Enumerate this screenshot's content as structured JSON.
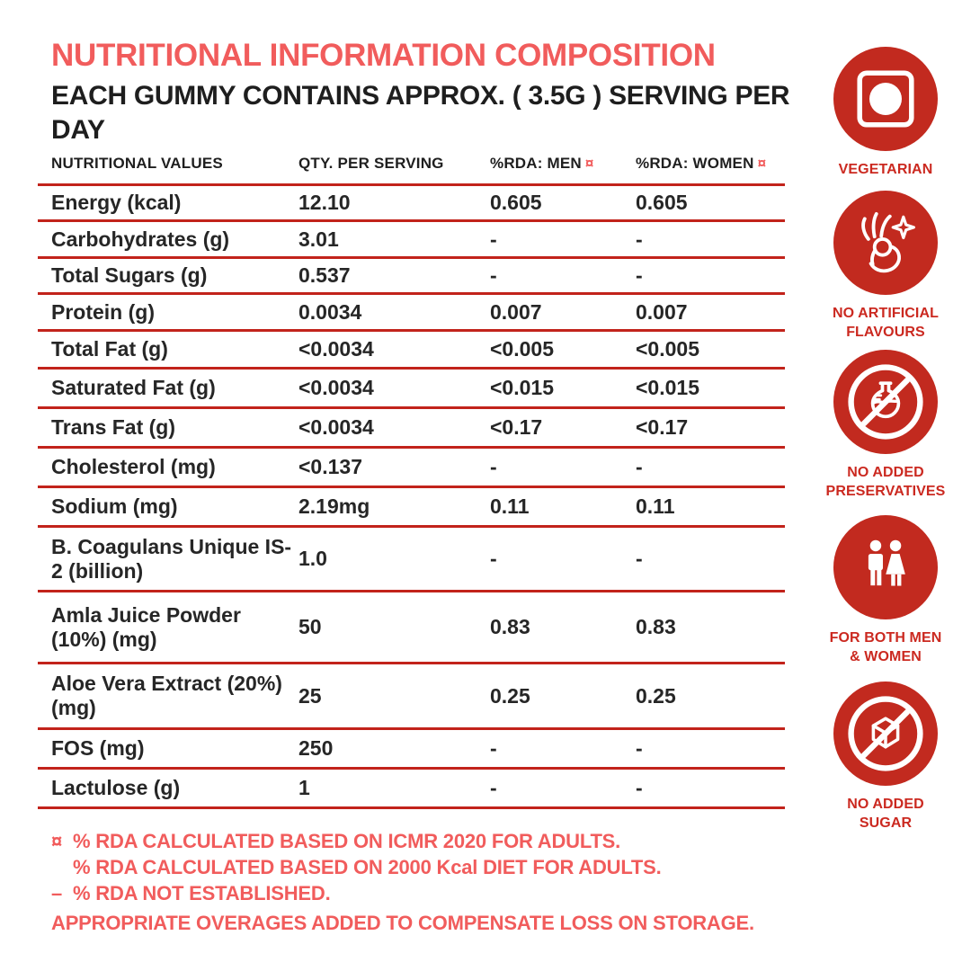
{
  "colors": {
    "coral": "#F15C5C",
    "rule_red": "#C2231B",
    "badge_red": "#C22A1F",
    "badge_label_red": "#CB2920",
    "text_dark": "#262626"
  },
  "header": {
    "title": "NUTRITIONAL INFORMATION COMPOSITION",
    "subtitle": "EACH GUMMY CONTAINS APPROX. ( 3.5G ) SERVING PER DAY"
  },
  "table": {
    "marker": "¤",
    "headers": [
      "NUTRITIONAL VALUES",
      "QTY. PER SERVING",
      "%RDA: MEN",
      "%RDA: WOMEN"
    ],
    "rows": [
      {
        "name": "Energy (kcal)",
        "qty": "12.10",
        "men": "0.605",
        "women": "0.605"
      },
      {
        "name": "Carbohydrates (g)",
        "qty": "3.01",
        "men": "-",
        "women": "-"
      },
      {
        "name": "Total Sugars (g)",
        "qty": "0.537",
        "men": "-",
        "women": "-"
      },
      {
        "name": "Protein (g)",
        "qty": "0.0034",
        "men": "0.007",
        "women": "0.007"
      },
      {
        "name": "Total Fat (g)",
        "qty": "<0.0034",
        "men": "<0.005",
        "women": "<0.005"
      },
      {
        "name": "Saturated Fat (g)",
        "qty": "<0.0034",
        "men": "<0.015",
        "women": "<0.015"
      },
      {
        "name": "Trans Fat (g)",
        "qty": "<0.0034",
        "men": "<0.17",
        "women": "<0.17"
      },
      {
        "name": "Cholesterol (mg)",
        "qty": "<0.137",
        "men": "-",
        "women": "-"
      },
      {
        "name": "Sodium (mg)",
        "qty": "2.19mg",
        "men": "0.11",
        "women": "0.11"
      },
      {
        "name": "B. Coagulans Unique IS-2 (billion)",
        "qty": "1.0",
        "men": "-",
        "women": "-"
      },
      {
        "name": "Amla Juice Powder (10%) (mg)",
        "qty": "50",
        "men": "0.83",
        "women": "0.83"
      },
      {
        "name": "Aloe Vera Extract (20%) (mg)",
        "qty": "25",
        "men": "0.25",
        "women": "0.25"
      },
      {
        "name": "FOS (mg)",
        "qty": "250",
        "men": "-",
        "women": "-"
      },
      {
        "name": "Lactulose (g)",
        "qty": "1",
        "men": "-",
        "women": "-"
      }
    ]
  },
  "footnotes": [
    {
      "marker": "¤",
      "text": "% RDA CALCULATED BASED ON ICMR 2020 FOR ADULTS."
    },
    {
      "marker": "",
      "text": "% RDA CALCULATED BASED ON 2000 Kcal DIET FOR ADULTS."
    },
    {
      "marker": "–",
      "text": "% RDA NOT ESTABLISHED."
    },
    {
      "marker": null,
      "text": "APPROPRIATE OVERAGES ADDED TO COMPENSATE LOSS ON STORAGE."
    }
  ],
  "badges": [
    {
      "icon": "vegetarian-icon",
      "label": "VEGETARIAN"
    },
    {
      "icon": "ok-hand-sparkle-icon",
      "label": "NO ARTIFICIAL\nFLAVOURS"
    },
    {
      "icon": "no-preservatives-flask-icon",
      "label": "NO ADDED\nPRESERVATIVES"
    },
    {
      "icon": "men-women-icon",
      "label": "FOR BOTH MEN\n& WOMEN"
    },
    {
      "icon": "no-sugar-cube-icon",
      "label": "NO ADDED\nSUGAR"
    }
  ]
}
